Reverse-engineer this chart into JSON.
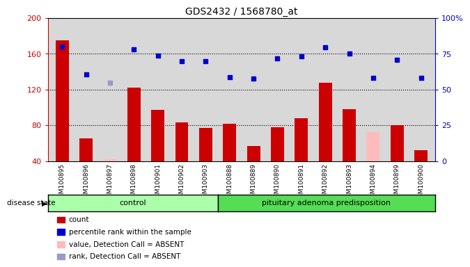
{
  "title": "GDS2432 / 1568780_at",
  "samples": [
    "GSM100895",
    "GSM100896",
    "GSM100897",
    "GSM100898",
    "GSM100901",
    "GSM100902",
    "GSM100903",
    "GSM100888",
    "GSM100889",
    "GSM100890",
    "GSM100891",
    "GSM100892",
    "GSM100893",
    "GSM100894",
    "GSM100899",
    "GSM100900"
  ],
  "bar_values": [
    175,
    65,
    42,
    122,
    97,
    83,
    77,
    82,
    57,
    78,
    88,
    128,
    98,
    72,
    80,
    52
  ],
  "bar_is_absent": [
    false,
    false,
    true,
    false,
    false,
    false,
    false,
    false,
    false,
    false,
    false,
    false,
    false,
    true,
    false,
    false
  ],
  "blue_dot_values": [
    168,
    137,
    128,
    165,
    158,
    152,
    152,
    134,
    132,
    155,
    157,
    167,
    160,
    133,
    153,
    133
  ],
  "blue_dot_absent": [
    false,
    false,
    true,
    false,
    false,
    false,
    false,
    false,
    false,
    false,
    false,
    false,
    false,
    false,
    false,
    false
  ],
  "ylim": [
    40,
    200
  ],
  "yticks_left": [
    40,
    80,
    120,
    160,
    200
  ],
  "ytick_labels_right": [
    "0",
    "25",
    "50",
    "75",
    "100%"
  ],
  "n_control": 7,
  "n_total": 16,
  "bar_color_normal": "#cc0000",
  "bar_color_absent": "#ffbbbb",
  "dot_color_normal": "#0000cc",
  "dot_color_absent": "#9999cc",
  "control_color": "#aaffaa",
  "pit_color": "#55dd55",
  "plot_bg": "#d8d8d8",
  "background": "#ffffff",
  "legend_labels": [
    "count",
    "percentile rank within the sample",
    "value, Detection Call = ABSENT",
    "rank, Detection Call = ABSENT"
  ],
  "legend_colors": [
    "#cc0000",
    "#0000cc",
    "#ffbbbb",
    "#9999cc"
  ]
}
